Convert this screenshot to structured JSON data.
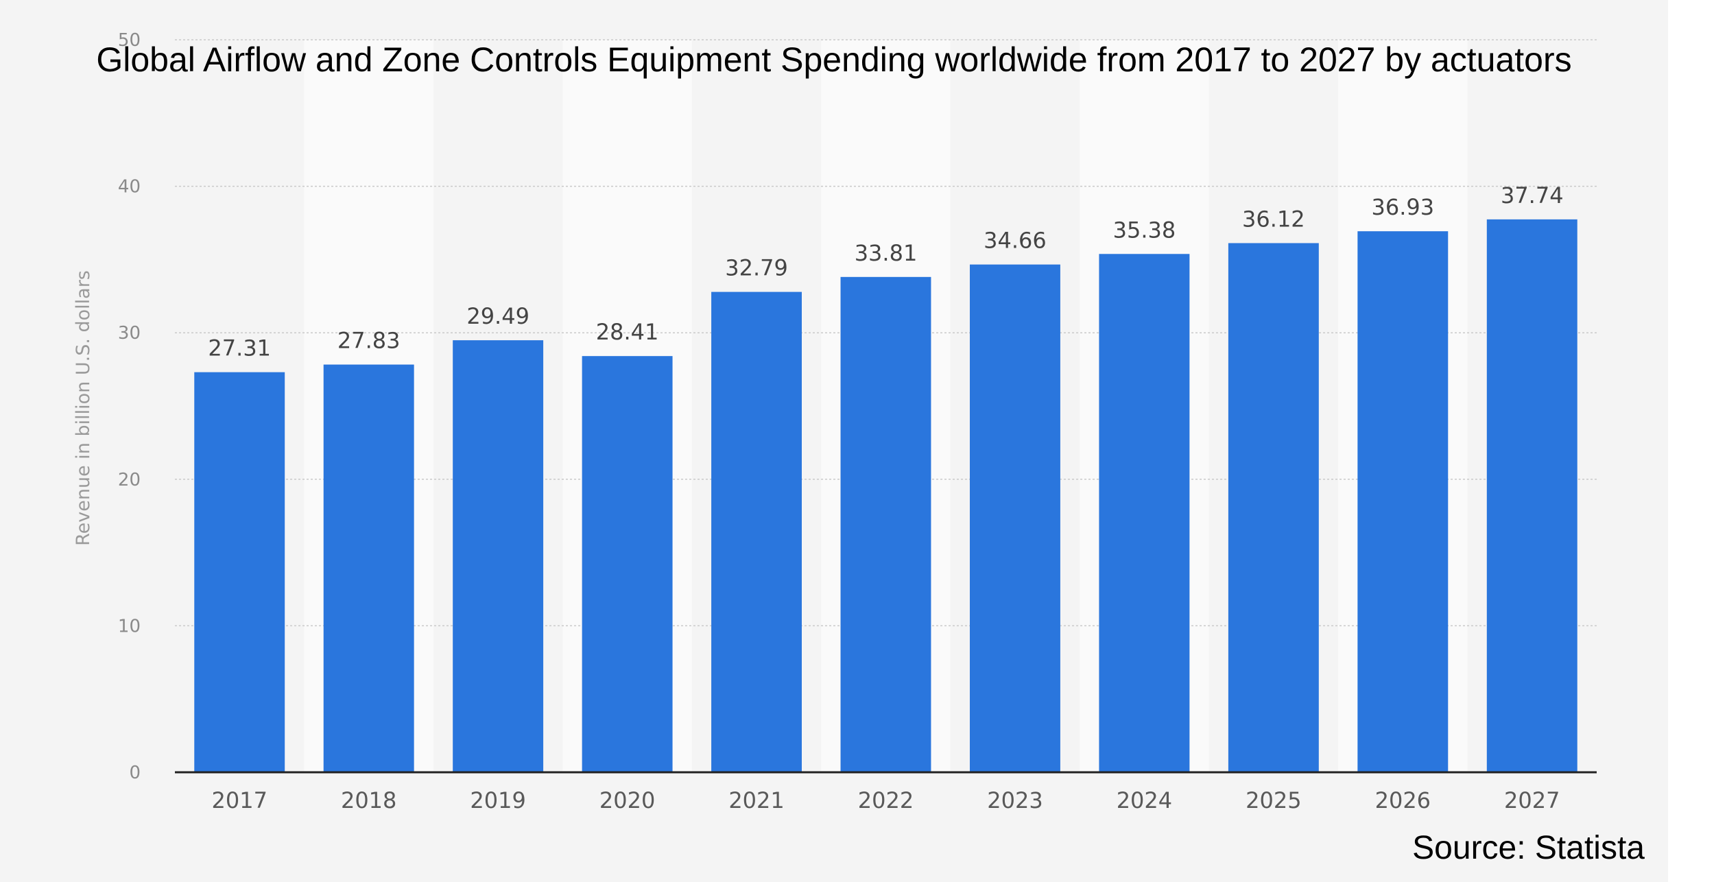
{
  "chart_data": {
    "type": "bar",
    "title": "Global Airflow and Zone Controls Equipment Spending worldwide from 2017 to 2027 by actuators",
    "ylabel": "Revenue in billion U.S. dollars",
    "xlabel": "",
    "categories": [
      "2017",
      "2018",
      "2019",
      "2020",
      "2021",
      "2022",
      "2023",
      "2024",
      "2025",
      "2026",
      "2027"
    ],
    "values": [
      27.31,
      27.83,
      29.49,
      28.41,
      32.79,
      33.81,
      34.66,
      35.38,
      36.12,
      36.93,
      37.74
    ],
    "data_labels": [
      "27.31",
      "27.83",
      "29.49",
      "28.41",
      "32.79",
      "33.81",
      "34.66",
      "35.38",
      "36.12",
      "36.93",
      "37.74"
    ],
    "ylim": [
      0,
      50
    ],
    "yticks": [
      0,
      10,
      20,
      30,
      40,
      50
    ],
    "grid": true,
    "bar_color": "#2a76dd",
    "background_color": "#f4f4f4",
    "alt_band_color": "#fafafa",
    "source": "Source: Statista"
  }
}
